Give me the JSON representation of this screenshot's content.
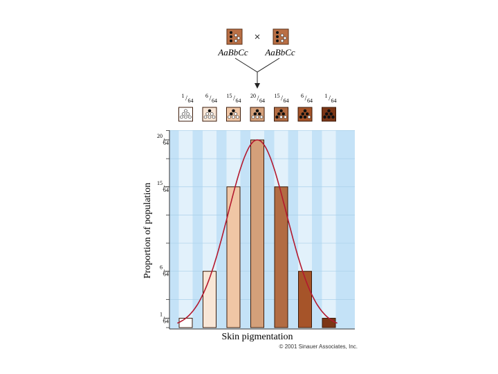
{
  "cross": {
    "parent_left_genotype": "AaBbCc",
    "parent_right_genotype": "AaBbCc",
    "cross_symbol": "×",
    "parent_color": "#b96f45"
  },
  "chart_data": {
    "type": "bar",
    "categories": [
      "1/64",
      "6/64",
      "15/64",
      "20/64",
      "15/64",
      "6/64",
      "1/64"
    ],
    "values": [
      1,
      6,
      15,
      20,
      15,
      6,
      1
    ],
    "dark_alleles": [
      0,
      1,
      2,
      3,
      4,
      5,
      6
    ],
    "fractions": [
      {
        "num": "1",
        "den": "64"
      },
      {
        "num": "6",
        "den": "64"
      },
      {
        "num": "15",
        "den": "64"
      },
      {
        "num": "20",
        "den": "64"
      },
      {
        "num": "15",
        "den": "64"
      },
      {
        "num": "6",
        "den": "64"
      },
      {
        "num": "1",
        "den": "64"
      }
    ],
    "y_ticks": [
      {
        "value": 1,
        "num": "1",
        "den": "64"
      },
      {
        "value": 6,
        "num": "6",
        "den": "64"
      },
      {
        "value": 15,
        "num": "15",
        "den": "64"
      },
      {
        "value": 20,
        "num": "20",
        "den": "64"
      }
    ],
    "ylim": [
      0,
      21
    ],
    "xlabel": "Skin pigmentation",
    "ylabel": "Proportion of population",
    "bar_colors": [
      "#ffffff",
      "#f8e6d6",
      "#f0c6a5",
      "#d4a07a",
      "#b26c43",
      "#a65429",
      "#7c3616"
    ],
    "curve_color": "#b3182e",
    "background_color": "#c4e2f7",
    "column_stripe_color": "#e2f1fb",
    "grid": true,
    "copyright": "© 2001 Sinauer Associates, Inc."
  }
}
